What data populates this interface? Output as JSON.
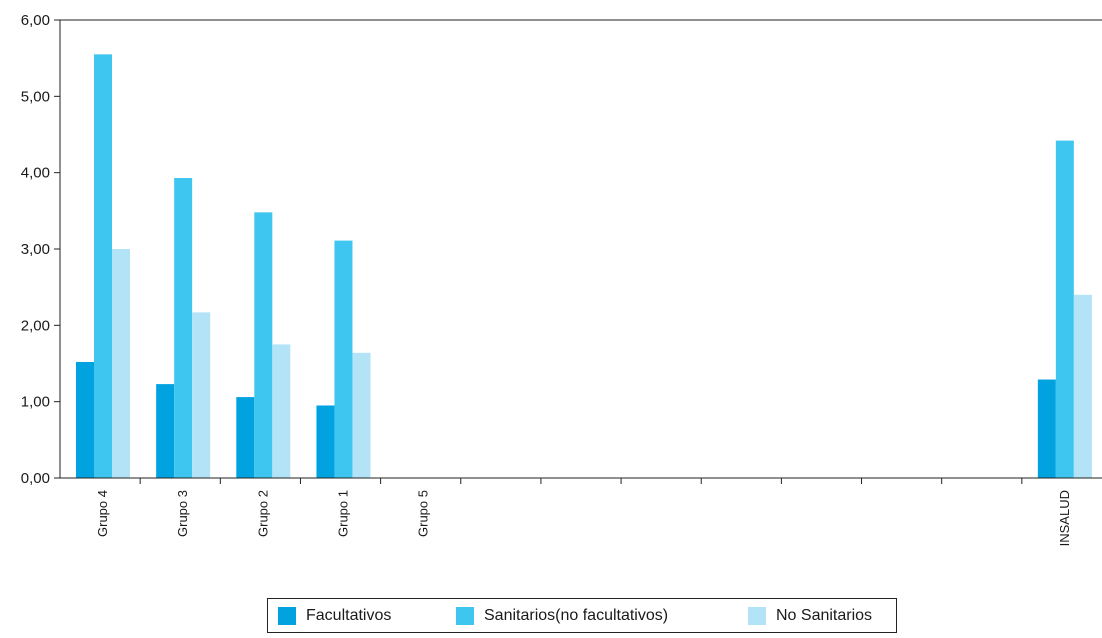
{
  "chart_data": {
    "type": "bar",
    "categories": [
      "Grupo 4",
      "Grupo 3",
      "Grupo 2",
      "Grupo 1",
      "Grupo 5",
      "",
      "",
      "",
      "",
      "",
      "",
      "",
      "INSALUD"
    ],
    "series": [
      {
        "name": "Facultativos",
        "color": "#00a3e0",
        "values": [
          1.52,
          1.23,
          1.06,
          0.95,
          null,
          null,
          null,
          null,
          null,
          null,
          null,
          null,
          1.29
        ]
      },
      {
        "name": "Sanitarios(no facultativos)",
        "color": "#3fc6f0",
        "values": [
          5.55,
          3.93,
          3.48,
          3.11,
          null,
          null,
          null,
          null,
          null,
          null,
          null,
          null,
          4.42
        ]
      },
      {
        "name": "No Sanitarios",
        "color": "#b3e3f7",
        "values": [
          3.0,
          2.17,
          1.75,
          1.64,
          null,
          null,
          null,
          null,
          null,
          null,
          null,
          null,
          2.4
        ]
      }
    ],
    "y_ticks": [
      "0,00",
      "1,00",
      "2,00",
      "3,00",
      "4,00",
      "5,00",
      "6,00"
    ],
    "ylim": [
      0,
      6
    ],
    "legend_position": "bottom",
    "grid": false
  }
}
